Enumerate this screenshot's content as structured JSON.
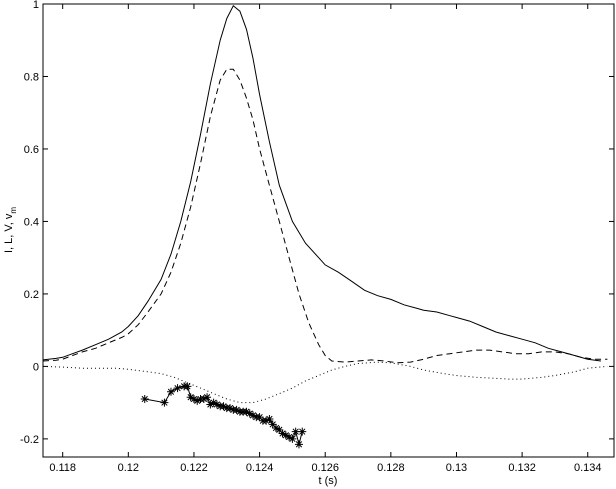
{
  "chart_data": {
    "type": "line",
    "title": "",
    "xlabel": "t  (s)",
    "ylabel_parts": {
      "main": "I, L, V, v",
      "sub": "m"
    },
    "xlim": [
      0.1174,
      0.1348
    ],
    "ylim": [
      -0.25,
      1.0
    ],
    "xticks": [
      0.118,
      0.12,
      0.122,
      0.124,
      0.126,
      0.128,
      0.13,
      0.132,
      0.134
    ],
    "yticks": [
      -0.2,
      0,
      0.2,
      0.4,
      0.6,
      0.8,
      1
    ],
    "grid": false,
    "legend": "none",
    "series": [
      {
        "style": "solid",
        "x": [
          0.1174,
          0.1178,
          0.118,
          0.1183,
          0.1186,
          0.119,
          0.1194,
          0.1198,
          0.12,
          0.1203,
          0.1206,
          0.121,
          0.1213,
          0.1216,
          0.1219,
          0.1222,
          0.1225,
          0.1228,
          0.123,
          0.1232,
          0.1234,
          0.1236,
          0.1238,
          0.124,
          0.1243,
          0.1246,
          0.125,
          0.1254,
          0.1258,
          0.126,
          0.1264,
          0.1268,
          0.1272,
          0.1276,
          0.128,
          0.1284,
          0.1288,
          0.129,
          0.1294,
          0.1298,
          0.13,
          0.1304,
          0.1308,
          0.1312,
          0.1316,
          0.132,
          0.1324,
          0.1328,
          0.1332,
          0.1336,
          0.134,
          0.1344
        ],
        "y": [
          0.018,
          0.022,
          0.025,
          0.035,
          0.045,
          0.06,
          0.075,
          0.095,
          0.11,
          0.14,
          0.18,
          0.24,
          0.31,
          0.4,
          0.51,
          0.64,
          0.78,
          0.9,
          0.96,
          0.995,
          0.98,
          0.93,
          0.85,
          0.75,
          0.62,
          0.5,
          0.4,
          0.34,
          0.3,
          0.28,
          0.26,
          0.235,
          0.21,
          0.195,
          0.185,
          0.17,
          0.16,
          0.155,
          0.15,
          0.14,
          0.135,
          0.125,
          0.11,
          0.095,
          0.085,
          0.075,
          0.065,
          0.05,
          0.04,
          0.03,
          0.02,
          0.015
        ]
      },
      {
        "style": "dashed",
        "x": [
          0.1174,
          0.1178,
          0.118,
          0.1183,
          0.1186,
          0.119,
          0.1194,
          0.1198,
          0.12,
          0.1203,
          0.1206,
          0.121,
          0.1213,
          0.1216,
          0.1219,
          0.1222,
          0.1225,
          0.1228,
          0.123,
          0.1232,
          0.1234,
          0.1236,
          0.1238,
          0.124,
          0.1243,
          0.1246,
          0.1249,
          0.1252,
          0.1255,
          0.1258,
          0.126,
          0.1262,
          0.1266,
          0.127,
          0.1274,
          0.1278,
          0.1282,
          0.1286,
          0.129,
          0.1294,
          0.1298,
          0.1302,
          0.1306,
          0.131,
          0.1314,
          0.1318,
          0.1322,
          0.1326,
          0.133,
          0.1334,
          0.1338,
          0.1342,
          0.1346
        ],
        "y": [
          0.015,
          0.017,
          0.02,
          0.03,
          0.04,
          0.05,
          0.065,
          0.08,
          0.09,
          0.115,
          0.15,
          0.2,
          0.26,
          0.34,
          0.44,
          0.56,
          0.69,
          0.79,
          0.82,
          0.82,
          0.79,
          0.74,
          0.68,
          0.6,
          0.5,
          0.4,
          0.3,
          0.2,
          0.12,
          0.06,
          0.03,
          0.015,
          0.012,
          0.015,
          0.018,
          0.015,
          0.01,
          0.012,
          0.02,
          0.03,
          0.035,
          0.04,
          0.045,
          0.045,
          0.04,
          0.035,
          0.035,
          0.04,
          0.04,
          0.035,
          0.025,
          0.02,
          0.02
        ]
      },
      {
        "style": "dotted",
        "x": [
          0.1174,
          0.118,
          0.1186,
          0.119,
          0.1196,
          0.12,
          0.1206,
          0.121,
          0.1214,
          0.1218,
          0.1222,
          0.1226,
          0.123,
          0.1234,
          0.1238,
          0.1242,
          0.1246,
          0.125,
          0.1254,
          0.1258,
          0.1262,
          0.1266,
          0.127,
          0.1276,
          0.128,
          0.1286,
          0.129,
          0.1296,
          0.13,
          0.1306,
          0.131,
          0.1316,
          0.132,
          0.1326,
          0.133,
          0.1336,
          0.134,
          0.1346
        ],
        "y": [
          0.0,
          -0.002,
          -0.005,
          -0.005,
          -0.005,
          -0.008,
          -0.015,
          -0.02,
          -0.03,
          -0.045,
          -0.06,
          -0.075,
          -0.09,
          -0.1,
          -0.1,
          -0.09,
          -0.075,
          -0.06,
          -0.04,
          -0.025,
          -0.01,
          0.0,
          0.008,
          0.012,
          0.01,
          0.0,
          -0.01,
          -0.02,
          -0.025,
          -0.03,
          -0.032,
          -0.035,
          -0.035,
          -0.03,
          -0.025,
          -0.015,
          -0.005,
          0.0
        ]
      },
      {
        "style": "line-star",
        "x": [
          0.1205,
          0.1211,
          0.1213,
          0.1215,
          0.1217,
          0.1218,
          0.1219,
          0.122,
          0.1221,
          0.1222,
          0.1223,
          0.1224,
          0.1225,
          0.1226,
          0.1227,
          0.1228,
          0.1229,
          0.123,
          0.1231,
          0.1232,
          0.1233,
          0.1234,
          0.1235,
          0.1236,
          0.1237,
          0.1238,
          0.1239,
          0.124,
          0.1241,
          0.1242,
          0.1243,
          0.1244,
          0.1245,
          0.1246,
          0.1247,
          0.1248,
          0.1249,
          0.125,
          0.1251,
          0.1252,
          0.1253
        ],
        "y": [
          -0.09,
          -0.1,
          -0.07,
          -0.06,
          -0.055,
          -0.055,
          -0.085,
          -0.09,
          -0.095,
          -0.09,
          -0.09,
          -0.085,
          -0.105,
          -0.1,
          -0.105,
          -0.11,
          -0.11,
          -0.115,
          -0.115,
          -0.12,
          -0.12,
          -0.125,
          -0.125,
          -0.125,
          -0.13,
          -0.135,
          -0.14,
          -0.14,
          -0.15,
          -0.15,
          -0.145,
          -0.16,
          -0.17,
          -0.175,
          -0.185,
          -0.19,
          -0.195,
          -0.2,
          -0.18,
          -0.215,
          -0.18
        ]
      }
    ]
  }
}
